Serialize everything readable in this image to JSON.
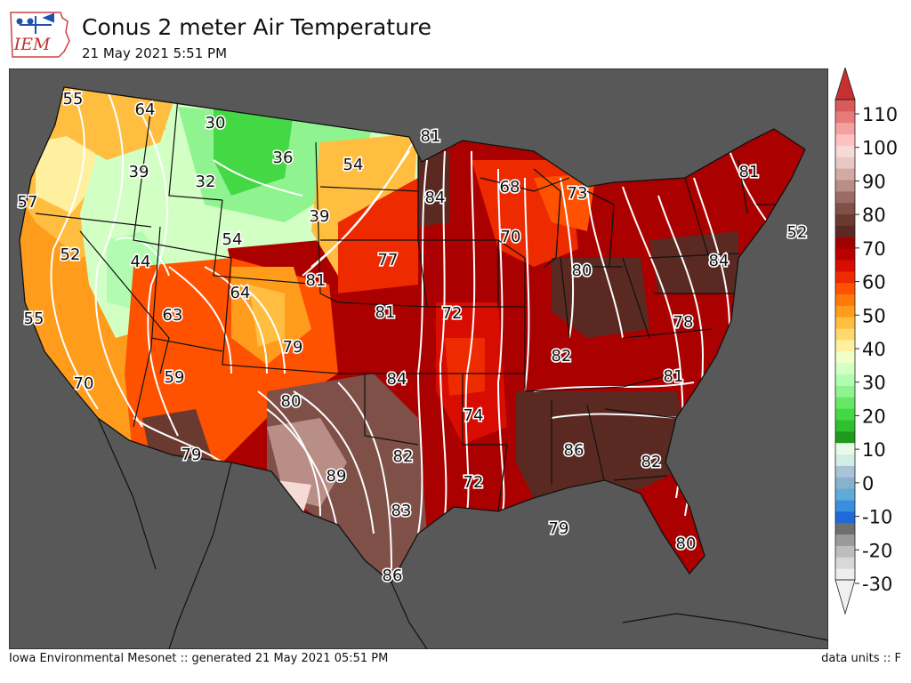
{
  "header": {
    "logo_text": "IEM",
    "title": "Conus 2 meter Air Temperature",
    "subtitle": "21 May 2021 5:51 PM"
  },
  "footer": {
    "left": "Iowa Environmental Mesonet :: generated 21 May 2021 05:51 PM",
    "right": "data units :: F"
  },
  "colorbar": {
    "tick_labels": [
      "110",
      "100",
      "90",
      "80",
      "70",
      "60",
      "50",
      "40",
      "30",
      "20",
      "10",
      "0",
      "-10",
      "-20",
      "-30"
    ],
    "colors": [
      "#eeeeee",
      "#d8d8d8",
      "#bdbdbd",
      "#9a9a9a",
      "#6f6f6f",
      "#1f6ad8",
      "#3a8ee0",
      "#5eaad8",
      "#86b2cc",
      "#a9c4d6",
      "#cfeee6",
      "#e8fbe8",
      "#1e9a1e",
      "#2fbf2f",
      "#45d845",
      "#66e866",
      "#8ff48f",
      "#b2fcb2",
      "#d2ffc4",
      "#f0ffc8",
      "#fff0a0",
      "#ffd870",
      "#ffbe40",
      "#ff9c1c",
      "#ff7a0a",
      "#ff5200",
      "#ee2a00",
      "#d80c00",
      "#bb0000",
      "#a00000",
      "#5a2a22",
      "#6a3a30",
      "#7e5048",
      "#9a6c64",
      "#b88e86",
      "#d2aaa4",
      "#e8c8c4",
      "#f6dad6",
      "#ffc0c0",
      "#f4a0a0",
      "#e87a7a",
      "#d85a5a"
    ],
    "extend_low_color": "#f0f0f0",
    "extend_high_color": "#c83030"
  },
  "map": {
    "ocean_color": "#585858",
    "labels": [
      {
        "text": "55"
      },
      {
        "text": "64"
      },
      {
        "text": "30"
      },
      {
        "text": "81"
      },
      {
        "text": "36"
      },
      {
        "text": "54"
      },
      {
        "text": "39"
      },
      {
        "text": "32"
      },
      {
        "text": "84"
      },
      {
        "text": "68"
      },
      {
        "text": "73"
      },
      {
        "text": "81"
      },
      {
        "text": "57"
      },
      {
        "text": "39"
      },
      {
        "text": "54"
      },
      {
        "text": "70"
      },
      {
        "text": "52"
      },
      {
        "text": "52"
      },
      {
        "text": "44"
      },
      {
        "text": "77"
      },
      {
        "text": "84"
      },
      {
        "text": "80"
      },
      {
        "text": "64"
      },
      {
        "text": "81"
      },
      {
        "text": "55"
      },
      {
        "text": "63"
      },
      {
        "text": "81"
      },
      {
        "text": "72"
      },
      {
        "text": "78"
      },
      {
        "text": "79"
      },
      {
        "text": "82"
      },
      {
        "text": "59"
      },
      {
        "text": "84"
      },
      {
        "text": "81"
      },
      {
        "text": "70"
      },
      {
        "text": "80"
      },
      {
        "text": "74"
      },
      {
        "text": "79"
      },
      {
        "text": "82"
      },
      {
        "text": "86"
      },
      {
        "text": "82"
      },
      {
        "text": "89"
      },
      {
        "text": "72"
      },
      {
        "text": "83"
      },
      {
        "text": "79"
      },
      {
        "text": "80"
      },
      {
        "text": "86"
      }
    ]
  }
}
